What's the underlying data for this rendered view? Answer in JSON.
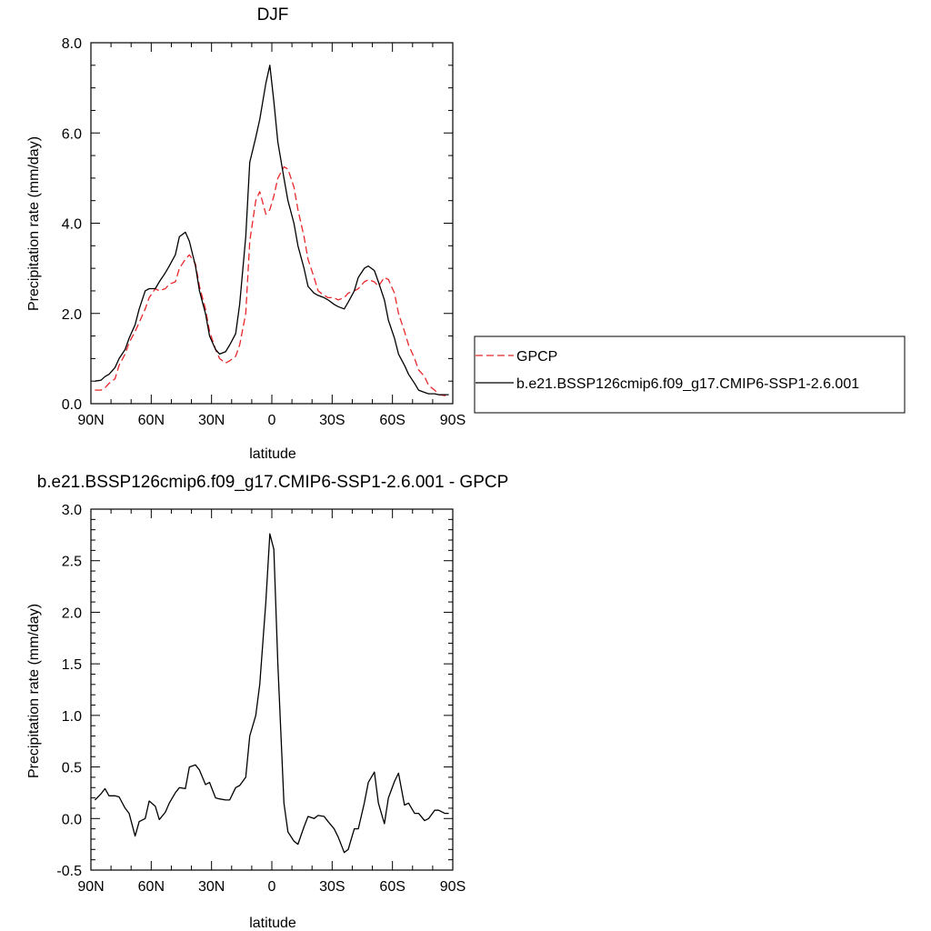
{
  "chart_data": [
    {
      "type": "line",
      "title": "DJF",
      "xlabel": "latitude",
      "ylabel": "Precipitation rate (mm/day)",
      "xlim": [
        90,
        -90
      ],
      "ylim": [
        0,
        8
      ],
      "x_ticks": [
        90,
        60,
        30,
        0,
        -30,
        -60,
        -90
      ],
      "x_tick_labels": [
        "90N",
        "60N",
        "30N",
        "0",
        "30S",
        "60S",
        "90S"
      ],
      "y_ticks": [
        0,
        2,
        4,
        6,
        8
      ],
      "y_tick_labels": [
        "0.0",
        "2.0",
        "4.0",
        "6.0",
        "8.0"
      ],
      "legend_position": "right",
      "x": [
        88,
        85,
        83,
        81,
        78,
        76,
        73,
        71,
        68,
        66,
        63,
        61,
        58,
        56,
        53,
        51,
        48,
        46,
        43,
        41,
        38,
        36,
        33,
        31,
        28,
        26,
        23,
        21,
        18,
        16,
        13,
        11,
        8,
        6,
        3,
        1,
        -1,
        -3,
        -6,
        -8,
        -11,
        -13,
        -16,
        -18,
        -21,
        -23,
        -26,
        -28,
        -31,
        -33,
        -36,
        -38,
        -41,
        -43,
        -46,
        -48,
        -51,
        -53,
        -56,
        -58,
        -61,
        -63,
        -66,
        -68,
        -71,
        -73,
        -76,
        -78,
        -81,
        -83,
        -86,
        -88
      ],
      "series": [
        {
          "name": "GPCP",
          "color": "#e8272a",
          "dash": "dashed",
          "values": [
            0.3,
            0.3,
            0.35,
            0.45,
            0.55,
            0.85,
            1.1,
            1.35,
            1.6,
            1.8,
            2.1,
            2.35,
            2.55,
            2.5,
            2.55,
            2.65,
            2.7,
            3.0,
            3.2,
            3.3,
            3.1,
            2.6,
            2.1,
            1.6,
            1.2,
            1.0,
            0.9,
            0.95,
            1.05,
            1.3,
            2.0,
            3.6,
            4.5,
            4.7,
            4.2,
            4.3,
            4.6,
            5.0,
            5.25,
            5.2,
            4.8,
            4.3,
            3.7,
            3.2,
            2.8,
            2.5,
            2.4,
            2.35,
            2.35,
            2.3,
            2.35,
            2.45,
            2.5,
            2.55,
            2.7,
            2.75,
            2.7,
            2.6,
            2.8,
            2.75,
            2.45,
            2.0,
            1.6,
            1.3,
            1.0,
            0.75,
            0.6,
            0.4,
            0.3,
            0.2,
            0.18,
            0.15
          ]
        },
        {
          "name": "b.e21.BSSP126cmip6.f09_g17.CMIP6-SSP1-2.6.001",
          "color": "#000000",
          "dash": "solid",
          "values": [
            0.5,
            0.52,
            0.6,
            0.65,
            0.8,
            1.0,
            1.2,
            1.45,
            1.75,
            2.1,
            2.5,
            2.55,
            2.55,
            2.7,
            2.9,
            3.05,
            3.3,
            3.7,
            3.8,
            3.6,
            3.05,
            2.5,
            2.0,
            1.5,
            1.2,
            1.1,
            1.15,
            1.3,
            1.55,
            2.2,
            3.7,
            5.35,
            5.9,
            6.3,
            7.1,
            7.5,
            6.7,
            5.8,
            5.0,
            4.5,
            4.0,
            3.5,
            3.0,
            2.6,
            2.45,
            2.4,
            2.35,
            2.3,
            2.2,
            2.15,
            2.1,
            2.25,
            2.5,
            2.8,
            3.0,
            3.05,
            2.95,
            2.7,
            2.3,
            1.85,
            1.45,
            1.1,
            0.85,
            0.65,
            0.45,
            0.3,
            0.25,
            0.22,
            0.22,
            0.2,
            0.2,
            0.2
          ]
        }
      ]
    },
    {
      "type": "line",
      "title": "b.e21.BSSP126cmip6.f09_g17.CMIP6-SSP1-2.6.001 - GPCP",
      "xlabel": "latitude",
      "ylabel": "Precipitation rate (mm/day)",
      "xlim": [
        90,
        -90
      ],
      "ylim": [
        -0.5,
        3.0
      ],
      "x_ticks": [
        90,
        60,
        30,
        0,
        -30,
        -60,
        -90
      ],
      "x_tick_labels": [
        "90N",
        "60N",
        "30N",
        "0",
        "30S",
        "60S",
        "90S"
      ],
      "y_ticks": [
        -0.5,
        0,
        0.5,
        1.0,
        1.5,
        2.0,
        2.5,
        3.0
      ],
      "y_tick_labels": [
        "-0.5",
        "0.0",
        "0.5",
        "1.0",
        "1.5",
        "2.0",
        "2.5",
        "3.0"
      ],
      "x": [
        88,
        85,
        83,
        81,
        78,
        76,
        73,
        71,
        68,
        66,
        63,
        61,
        58,
        56,
        53,
        51,
        48,
        46,
        43,
        41,
        38,
        36,
        33,
        31,
        28,
        26,
        23,
        21,
        18,
        16,
        13,
        11,
        8,
        6,
        3,
        1,
        -1,
        -3,
        -6,
        -8,
        -11,
        -13,
        -16,
        -18,
        -21,
        -23,
        -26,
        -28,
        -31,
        -33,
        -36,
        -38,
        -41,
        -43,
        -46,
        -48,
        -51,
        -53,
        -56,
        -58,
        -61,
        -63,
        -66,
        -68,
        -71,
        -73,
        -76,
        -78,
        -81,
        -83,
        -86,
        -88
      ],
      "series": [
        {
          "color": "#000000",
          "dash": "solid",
          "values": [
            0.18,
            0.24,
            0.29,
            0.22,
            0.22,
            0.21,
            0.1,
            0.05,
            -0.17,
            -0.03,
            0.0,
            0.17,
            0.12,
            -0.01,
            0.06,
            0.15,
            0.25,
            0.3,
            0.29,
            0.5,
            0.52,
            0.47,
            0.33,
            0.35,
            0.2,
            0.19,
            0.18,
            0.18,
            0.3,
            0.32,
            0.4,
            0.8,
            1.0,
            1.3,
            2.1,
            2.76,
            2.61,
            1.5,
            0.15,
            -0.13,
            -0.22,
            -0.25,
            -0.08,
            0.02,
            0.0,
            0.03,
            0.02,
            -0.03,
            -0.1,
            -0.18,
            -0.33,
            -0.3,
            -0.1,
            -0.1,
            0.15,
            0.35,
            0.45,
            0.15,
            -0.05,
            0.2,
            0.36,
            0.44,
            0.13,
            0.15,
            0.05,
            0.05,
            -0.02,
            0.0,
            0.08,
            0.08,
            0.05,
            0.05
          ]
        }
      ]
    }
  ]
}
